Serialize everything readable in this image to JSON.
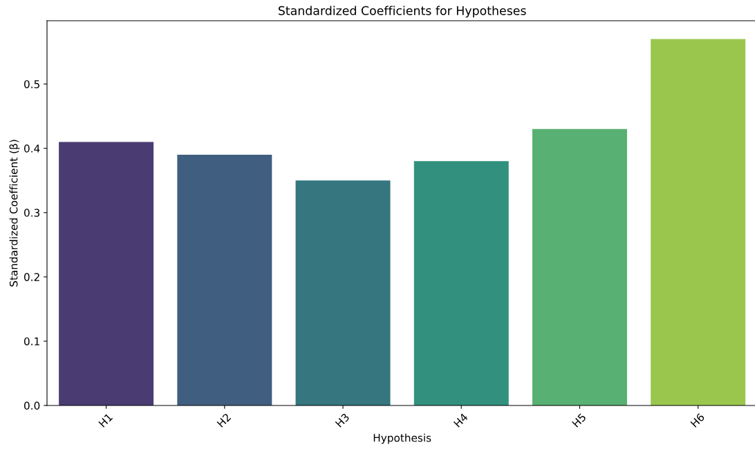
{
  "chart_data": {
    "type": "bar",
    "title": "Standardized Coefficients for Hypotheses",
    "xlabel": "Hypothesis",
    "ylabel": "Standardized Coefficient (β)",
    "categories": [
      "H1",
      "H2",
      "H3",
      "H4",
      "H5",
      "H6"
    ],
    "values": [
      0.41,
      0.39,
      0.35,
      0.38,
      0.43,
      0.57
    ],
    "colors": [
      "#4b3b73",
      "#405e80",
      "#35767f",
      "#31917e",
      "#58b072",
      "#9bc64d"
    ],
    "ylim": [
      0,
      0.5985
    ],
    "yticks": [
      {
        "value": 0,
        "label": "0.0"
      },
      {
        "value": 0.1,
        "label": "0.1"
      },
      {
        "value": 0.2,
        "label": "0.2"
      },
      {
        "value": 0.3,
        "label": "0.3"
      },
      {
        "value": 0.4,
        "label": "0.4"
      },
      {
        "value": 0.5,
        "label": "0.5"
      }
    ],
    "grid": false,
    "legend": false
  }
}
